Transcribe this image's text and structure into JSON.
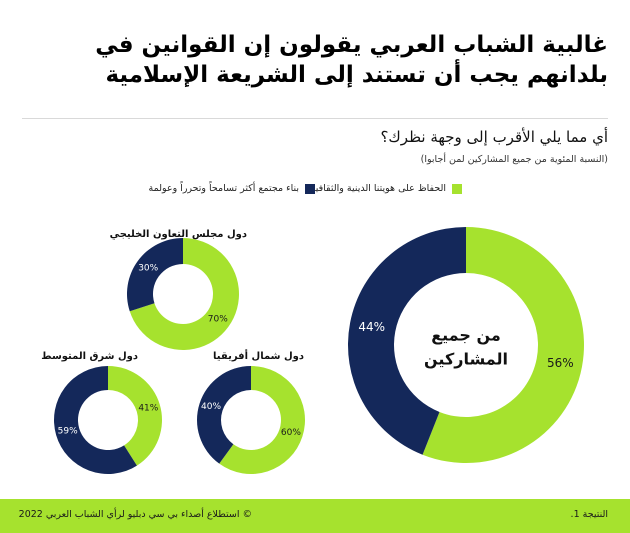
{
  "title": {
    "line1": "غالبية الشباب العربي يقولون إن القوانين في",
    "line2": "بلدانهم يجب أن تستند إلى الشريعة الإسلامية"
  },
  "question": "أي مما يلي الأقرب إلى وجهة نظرك؟",
  "subtitle": "(النسبة المئوية من جميع المشاركين لمن أجابوا)",
  "legend": [
    {
      "label": "الحفاظ على هويتنا الدينية والثقافية",
      "color": "#a6e22e"
    },
    {
      "label": "بناء مجتمع أكثر تسامحاً وتحرراً وعولمة",
      "color": "#14285a"
    }
  ],
  "colors": {
    "green": "#a6e22e",
    "navy": "#14285a",
    "footer": "#a6e22e"
  },
  "chart_data": [
    {
      "type": "pie",
      "title": "من جميع المشاركين",
      "categories": [
        "الحفاظ على هويتنا الدينية والثقافية",
        "بناء مجتمع أكثر تسامحاً وتحرراً وعولمة"
      ],
      "values": [
        56,
        44
      ],
      "labels": [
        "56%",
        "44%"
      ]
    },
    {
      "type": "pie",
      "title": "دول مجلس التعاون الخليجي",
      "categories": [
        "الحفاظ على هويتنا الدينية والثقافية",
        "بناء مجتمع أكثر تسامحاً وتحرراً وعولمة"
      ],
      "values": [
        70,
        30
      ],
      "labels": [
        "70%",
        "30%"
      ]
    },
    {
      "type": "pie",
      "title": "دول شمال أفريقيا",
      "categories": [
        "الحفاظ على هويتنا الدينية والثقافية",
        "بناء مجتمع أكثر تسامحاً وتحرراً وعولمة"
      ],
      "values": [
        60,
        40
      ],
      "labels": [
        "60%",
        "40%"
      ]
    },
    {
      "type": "pie",
      "title": "دول شرق المتوسط",
      "categories": [
        "الحفاظ على هويتنا الدينية والثقافية",
        "بناء مجتمع أكثر تسامحاً وتحرراً وعولمة"
      ],
      "values": [
        41,
        59
      ],
      "labels": [
        "41%",
        "59%"
      ]
    }
  ],
  "footer": {
    "finding": "النتيجة 1.",
    "copyright": "© استطلاع أصداء بي سي دبليو لرأي الشباب العربي 2022"
  }
}
